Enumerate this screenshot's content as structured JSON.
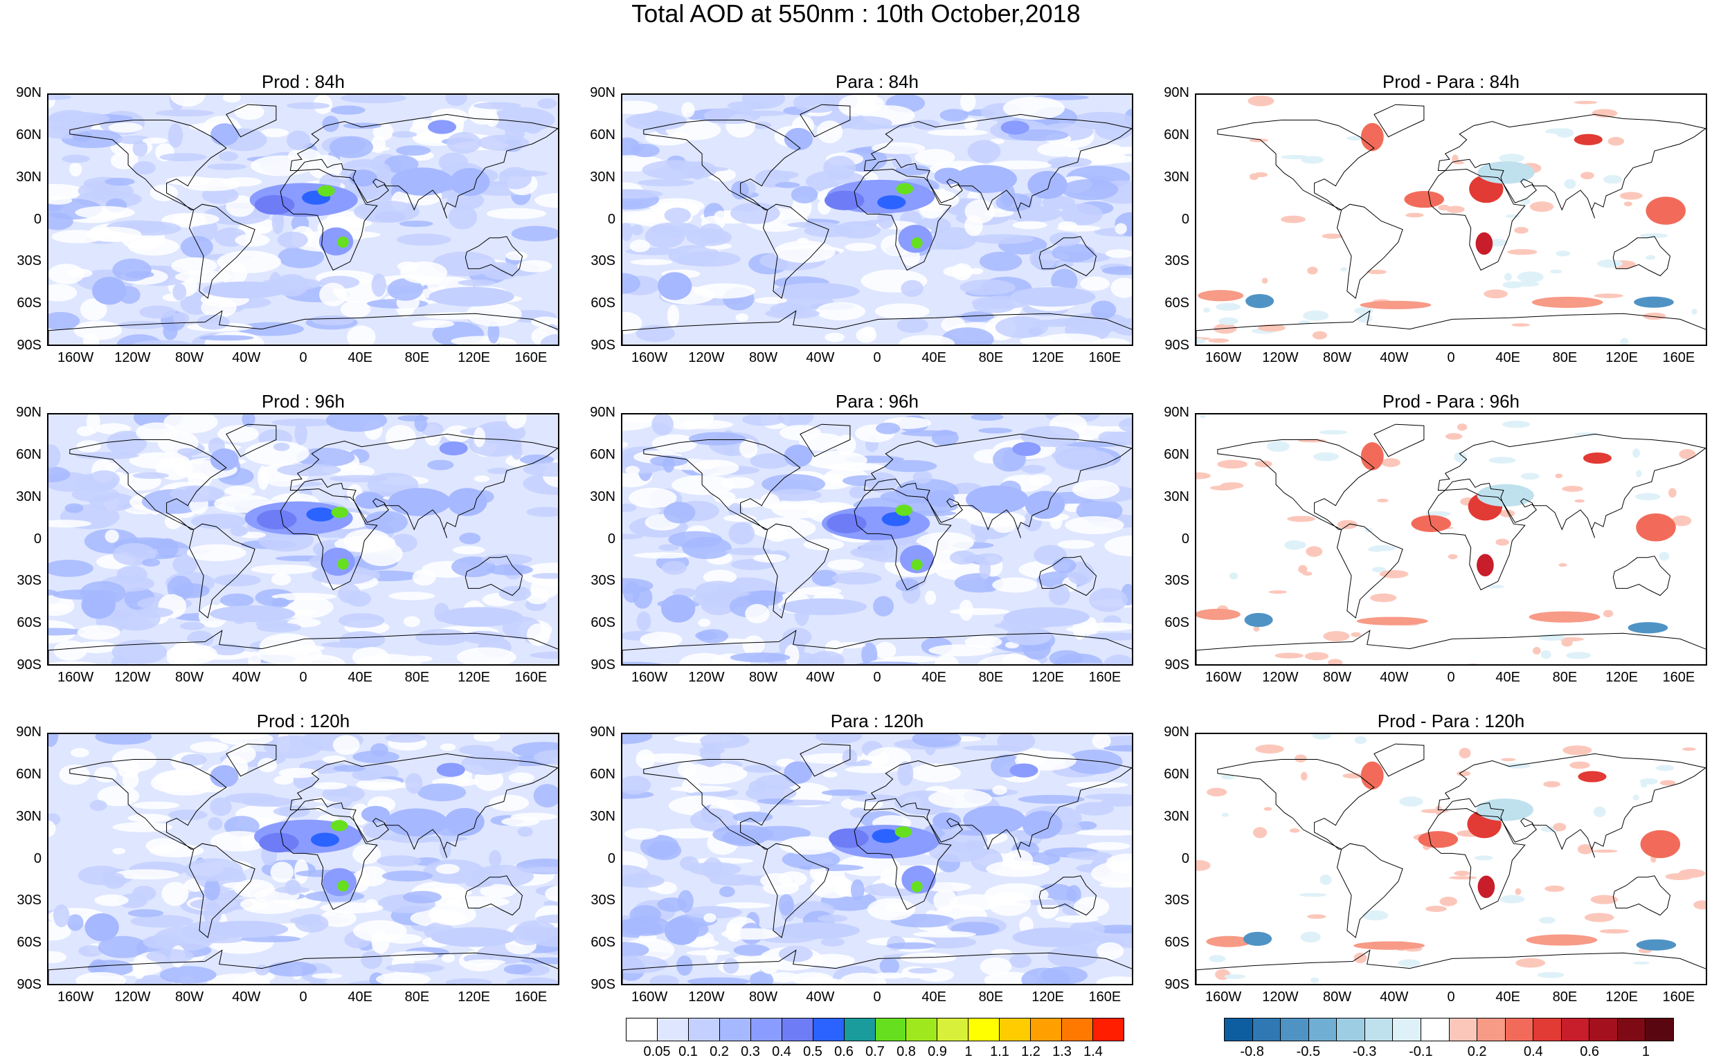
{
  "title": "Total AOD at 550nm : 10th October,2018",
  "lat_labels": [
    "90N",
    "60N",
    "30N",
    "0",
    "30S",
    "60S",
    "90S"
  ],
  "lon_labels": [
    "160W",
    "120W",
    "80W",
    "40W",
    "0",
    "40E",
    "80E",
    "120E",
    "160E"
  ],
  "panels": [
    {
      "title": "Prod : 84h",
      "type": "aod"
    },
    {
      "title": "Para : 84h",
      "type": "aod"
    },
    {
      "title": "Prod - Para : 84h",
      "type": "diff"
    },
    {
      "title": "Prod : 96h",
      "type": "aod"
    },
    {
      "title": "Para : 96h",
      "type": "aod"
    },
    {
      "title": "Prod - Para : 96h",
      "type": "diff"
    },
    {
      "title": "Prod : 120h",
      "type": "aod"
    },
    {
      "title": "Para : 120h",
      "type": "aod"
    },
    {
      "title": "Prod - Para : 120h",
      "type": "diff"
    }
  ],
  "aod_colorbar": {
    "colors": [
      "#ffffff",
      "#dfe6ff",
      "#c4d0ff",
      "#a6b8ff",
      "#8a9cff",
      "#6e7df5",
      "#2a63ff",
      "#1a9c9c",
      "#66e01e",
      "#9fe81e",
      "#d8f03a",
      "#ffff00",
      "#ffcc00",
      "#ffa000",
      "#ff7800",
      "#ff1e00"
    ],
    "labels": [
      "0.05",
      "0.1",
      "0.2",
      "0.3",
      "0.4",
      "0.5",
      "0.6",
      "0.7",
      "0.8",
      "0.9",
      "1",
      "1.1",
      "1.2",
      "1.3",
      "1.4"
    ]
  },
  "diff_colorbar": {
    "colors": [
      "#0d5ea0",
      "#2f78b4",
      "#4f93c5",
      "#70aed3",
      "#9dcde3",
      "#bfe1ee",
      "#dff1f8",
      "#ffffff",
      "#fcc7bb",
      "#f79a86",
      "#f26b5a",
      "#e23a34",
      "#c81d2a",
      "#a5101f",
      "#7e0a15",
      "#5a0610"
    ],
    "labels": [
      "-0.8",
      "-0.5",
      "-0.3",
      "-0.1",
      "0.2",
      "0.4",
      "0.6",
      "1"
    ],
    "label_slots": [
      1,
      3,
      5,
      7,
      9,
      11,
      13,
      15
    ]
  }
}
